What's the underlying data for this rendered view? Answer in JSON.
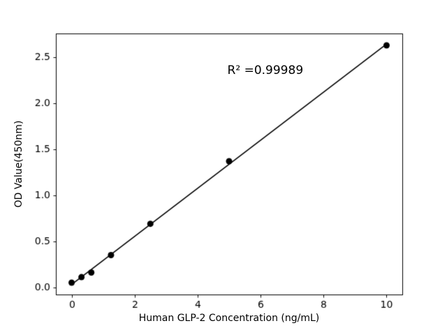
{
  "chart_data": {
    "type": "scatter",
    "title": "",
    "xlabel": "Human GLP-2 Concentration (ng/mL)",
    "ylabel": "OD Value(450nm)",
    "x": [
      0,
      0.3125,
      0.625,
      1.25,
      2.5,
      5,
      10
    ],
    "y": [
      0.05,
      0.11,
      0.16,
      0.35,
      0.69,
      1.37,
      2.63
    ],
    "fit_line": true,
    "annotation": {
      "text": "R² =0.99989",
      "x": 6.15,
      "y": 2.36
    },
    "xlim": [
      -0.5,
      10.5
    ],
    "ylim": [
      -0.079,
      2.759
    ],
    "xticks": [
      0,
      2,
      4,
      6,
      8,
      10
    ],
    "xtick_labels": [
      "0",
      "2",
      "4",
      "6",
      "8",
      "10"
    ],
    "yticks": [
      0.0,
      0.5,
      1.0,
      1.5,
      2.0,
      2.5
    ],
    "ytick_labels": [
      "0.0",
      "0.5",
      "1.0",
      "1.5",
      "2.0",
      "2.5"
    ],
    "grid": false,
    "legend": "none",
    "marker_color": "#000000",
    "line_color": "#000000",
    "axis_color": "#000000",
    "background": "#ffffff"
  }
}
